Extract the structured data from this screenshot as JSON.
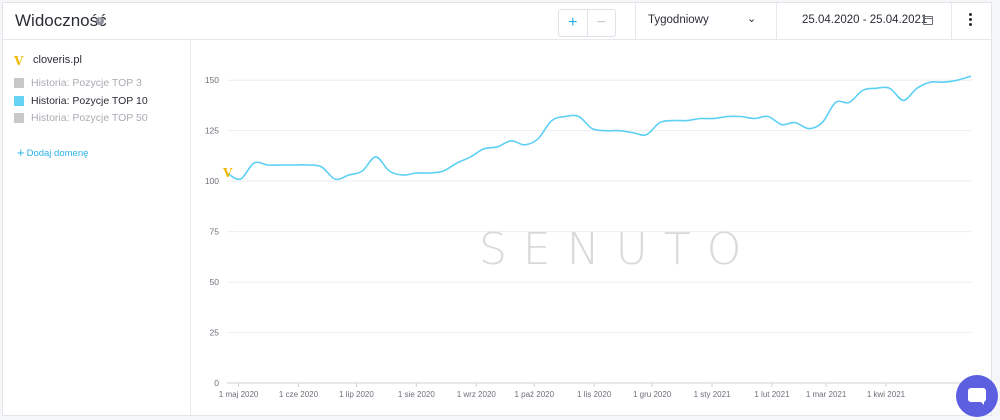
{
  "header": {
    "title": "Widoczność",
    "zoom_in": "+",
    "zoom_out": "−",
    "period": "Tygodniowy",
    "date_range": "25.04.2020 - 25.04.2021"
  },
  "sidebar": {
    "domain_logo": "V",
    "domain": "cloveris.pl",
    "legend": [
      {
        "label": "Historia: Pozycje TOP 3",
        "color": "#c8c8c8",
        "active": false
      },
      {
        "label": "Historia: Pozycje TOP 10",
        "color": "#66d3f5",
        "active": true
      },
      {
        "label": "Historia: Pozycje TOP 50",
        "color": "#c8c8c8",
        "active": false
      }
    ],
    "add_domain": "Dodaj domenę"
  },
  "watermark": "SENUTO",
  "colors": {
    "line": "#5dd0f4",
    "accent": "#27b2e6"
  },
  "icons": [
    "info-icon",
    "calendar-icon",
    "menu-dots-icon",
    "chevron-down-icon",
    "chat-icon"
  ],
  "chart_data": {
    "type": "line",
    "x_tick_labels": [
      "1 maj 2020",
      "1 cze 2020",
      "1 lip 2020",
      "1 sie 2020",
      "1 wrz 2020",
      "1 paź 2020",
      "1 lis 2020",
      "1 gru 2020",
      "1 sty 2021",
      "1 lut 2021",
      "1 mar 2021",
      "1 kwi 2021"
    ],
    "ylim": [
      0,
      150
    ],
    "yticks": [
      0,
      25,
      50,
      75,
      100,
      125,
      150
    ],
    "grid": true,
    "series": [
      {
        "name": "Historia: Pozycje TOP 10",
        "points": [
          [
            "2020-04-25",
            104
          ],
          [
            "2020-05-02",
            101
          ],
          [
            "2020-05-09",
            109
          ],
          [
            "2020-05-16",
            108
          ],
          [
            "2020-05-23",
            108
          ],
          [
            "2020-05-30",
            108
          ],
          [
            "2020-06-06",
            108
          ],
          [
            "2020-06-13",
            107
          ],
          [
            "2020-06-20",
            101
          ],
          [
            "2020-06-27",
            103
          ],
          [
            "2020-07-04",
            105
          ],
          [
            "2020-07-11",
            112
          ],
          [
            "2020-07-18",
            105
          ],
          [
            "2020-07-25",
            103
          ],
          [
            "2020-08-01",
            104
          ],
          [
            "2020-08-08",
            104
          ],
          [
            "2020-08-15",
            105
          ],
          [
            "2020-08-22",
            109
          ],
          [
            "2020-08-29",
            112
          ],
          [
            "2020-09-05",
            116
          ],
          [
            "2020-09-12",
            117
          ],
          [
            "2020-09-19",
            120
          ],
          [
            "2020-09-26",
            118
          ],
          [
            "2020-10-03",
            121
          ],
          [
            "2020-10-10",
            130
          ],
          [
            "2020-10-17",
            132
          ],
          [
            "2020-10-24",
            132
          ],
          [
            "2020-10-31",
            126
          ],
          [
            "2020-11-07",
            125
          ],
          [
            "2020-11-14",
            125
          ],
          [
            "2020-11-21",
            124
          ],
          [
            "2020-11-28",
            123
          ],
          [
            "2020-12-05",
            129
          ],
          [
            "2020-12-12",
            130
          ],
          [
            "2020-12-19",
            130
          ],
          [
            "2020-12-26",
            131
          ],
          [
            "2021-01-02",
            131
          ],
          [
            "2021-01-09",
            132
          ],
          [
            "2021-01-16",
            132
          ],
          [
            "2021-01-23",
            131
          ],
          [
            "2021-01-30",
            132
          ],
          [
            "2021-02-06",
            128
          ],
          [
            "2021-02-13",
            129
          ],
          [
            "2021-02-20",
            126
          ],
          [
            "2021-02-27",
            129
          ],
          [
            "2021-03-06",
            139
          ],
          [
            "2021-03-13",
            139
          ],
          [
            "2021-03-20",
            145
          ],
          [
            "2021-03-27",
            146
          ],
          [
            "2021-04-03",
            146
          ],
          [
            "2021-04-10",
            140
          ],
          [
            "2021-04-17",
            146
          ],
          [
            "2021-04-24",
            149
          ],
          [
            "2021-05-01",
            149
          ],
          [
            "2021-05-08",
            150
          ],
          [
            "2021-05-15",
            152
          ]
        ]
      }
    ]
  }
}
